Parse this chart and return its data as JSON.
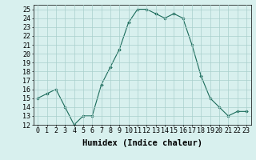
{
  "x": [
    0,
    1,
    2,
    3,
    4,
    5,
    6,
    7,
    8,
    9,
    10,
    11,
    12,
    13,
    14,
    15,
    16,
    17,
    18,
    19,
    20,
    21,
    22,
    23
  ],
  "y": [
    15.0,
    15.5,
    16.0,
    14.0,
    12.0,
    13.0,
    13.0,
    16.5,
    18.5,
    20.5,
    23.5,
    25.0,
    25.0,
    24.5,
    24.0,
    24.5,
    24.0,
    21.0,
    17.5,
    15.0,
    14.0,
    13.0,
    13.5,
    13.5
  ],
  "ylim": [
    12,
    25.5
  ],
  "yticks": [
    12,
    13,
    14,
    15,
    16,
    17,
    18,
    19,
    20,
    21,
    22,
    23,
    24,
    25
  ],
  "xlabel": "Humidex (Indice chaleur)",
  "line_color": "#1a6b5a",
  "marker_color": "#1a6b5a",
  "bg_color": "#d8f0ee",
  "grid_color": "#aacfcc",
  "tick_label_fontsize": 6.0,
  "xlabel_fontsize": 7.5,
  "title": "",
  "figwidth": 3.2,
  "figheight": 2.0,
  "dpi": 100
}
